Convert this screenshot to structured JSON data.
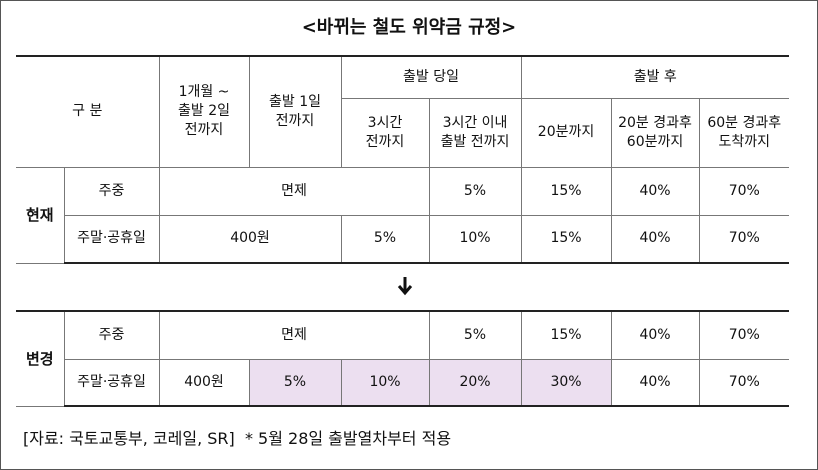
{
  "title": "<바뀌는 철도 위약금 규정>",
  "header": {
    "category": "구 분",
    "col1": "1개월 ~\n출발 2일\n전까지",
    "col2": "출발 1일\n전까지",
    "same_day": "출발 당일",
    "same_day_cols": [
      "3시간\n전까지",
      "3시간 이내\n출발 전까지"
    ],
    "after": "출발 후",
    "after_cols": [
      "20분까지",
      "20분 경과후\n60분까지",
      "60분 경과후\n도착까지"
    ]
  },
  "current": {
    "label": "현재",
    "rows": [
      {
        "name": "주중",
        "cells": [
          "면제",
          "5%",
          "15%",
          "40%",
          "70%"
        ]
      },
      {
        "name": "주말·공휴일",
        "cells": [
          "400원",
          "5%",
          "10%",
          "15%",
          "40%",
          "70%"
        ]
      }
    ]
  },
  "changed": {
    "label": "변경",
    "rows": [
      {
        "name": "주중",
        "cells": [
          "면제",
          "5%",
          "15%",
          "40%",
          "70%"
        ]
      },
      {
        "name": "주말·공휴일",
        "cells": [
          "400원",
          "5%",
          "10%",
          "20%",
          "30%",
          "40%",
          "70%"
        ]
      }
    ]
  },
  "footer": "[자료: 국토교통부, 코레일, SR]  * 5월 28일 출발열차부터 적용"
}
